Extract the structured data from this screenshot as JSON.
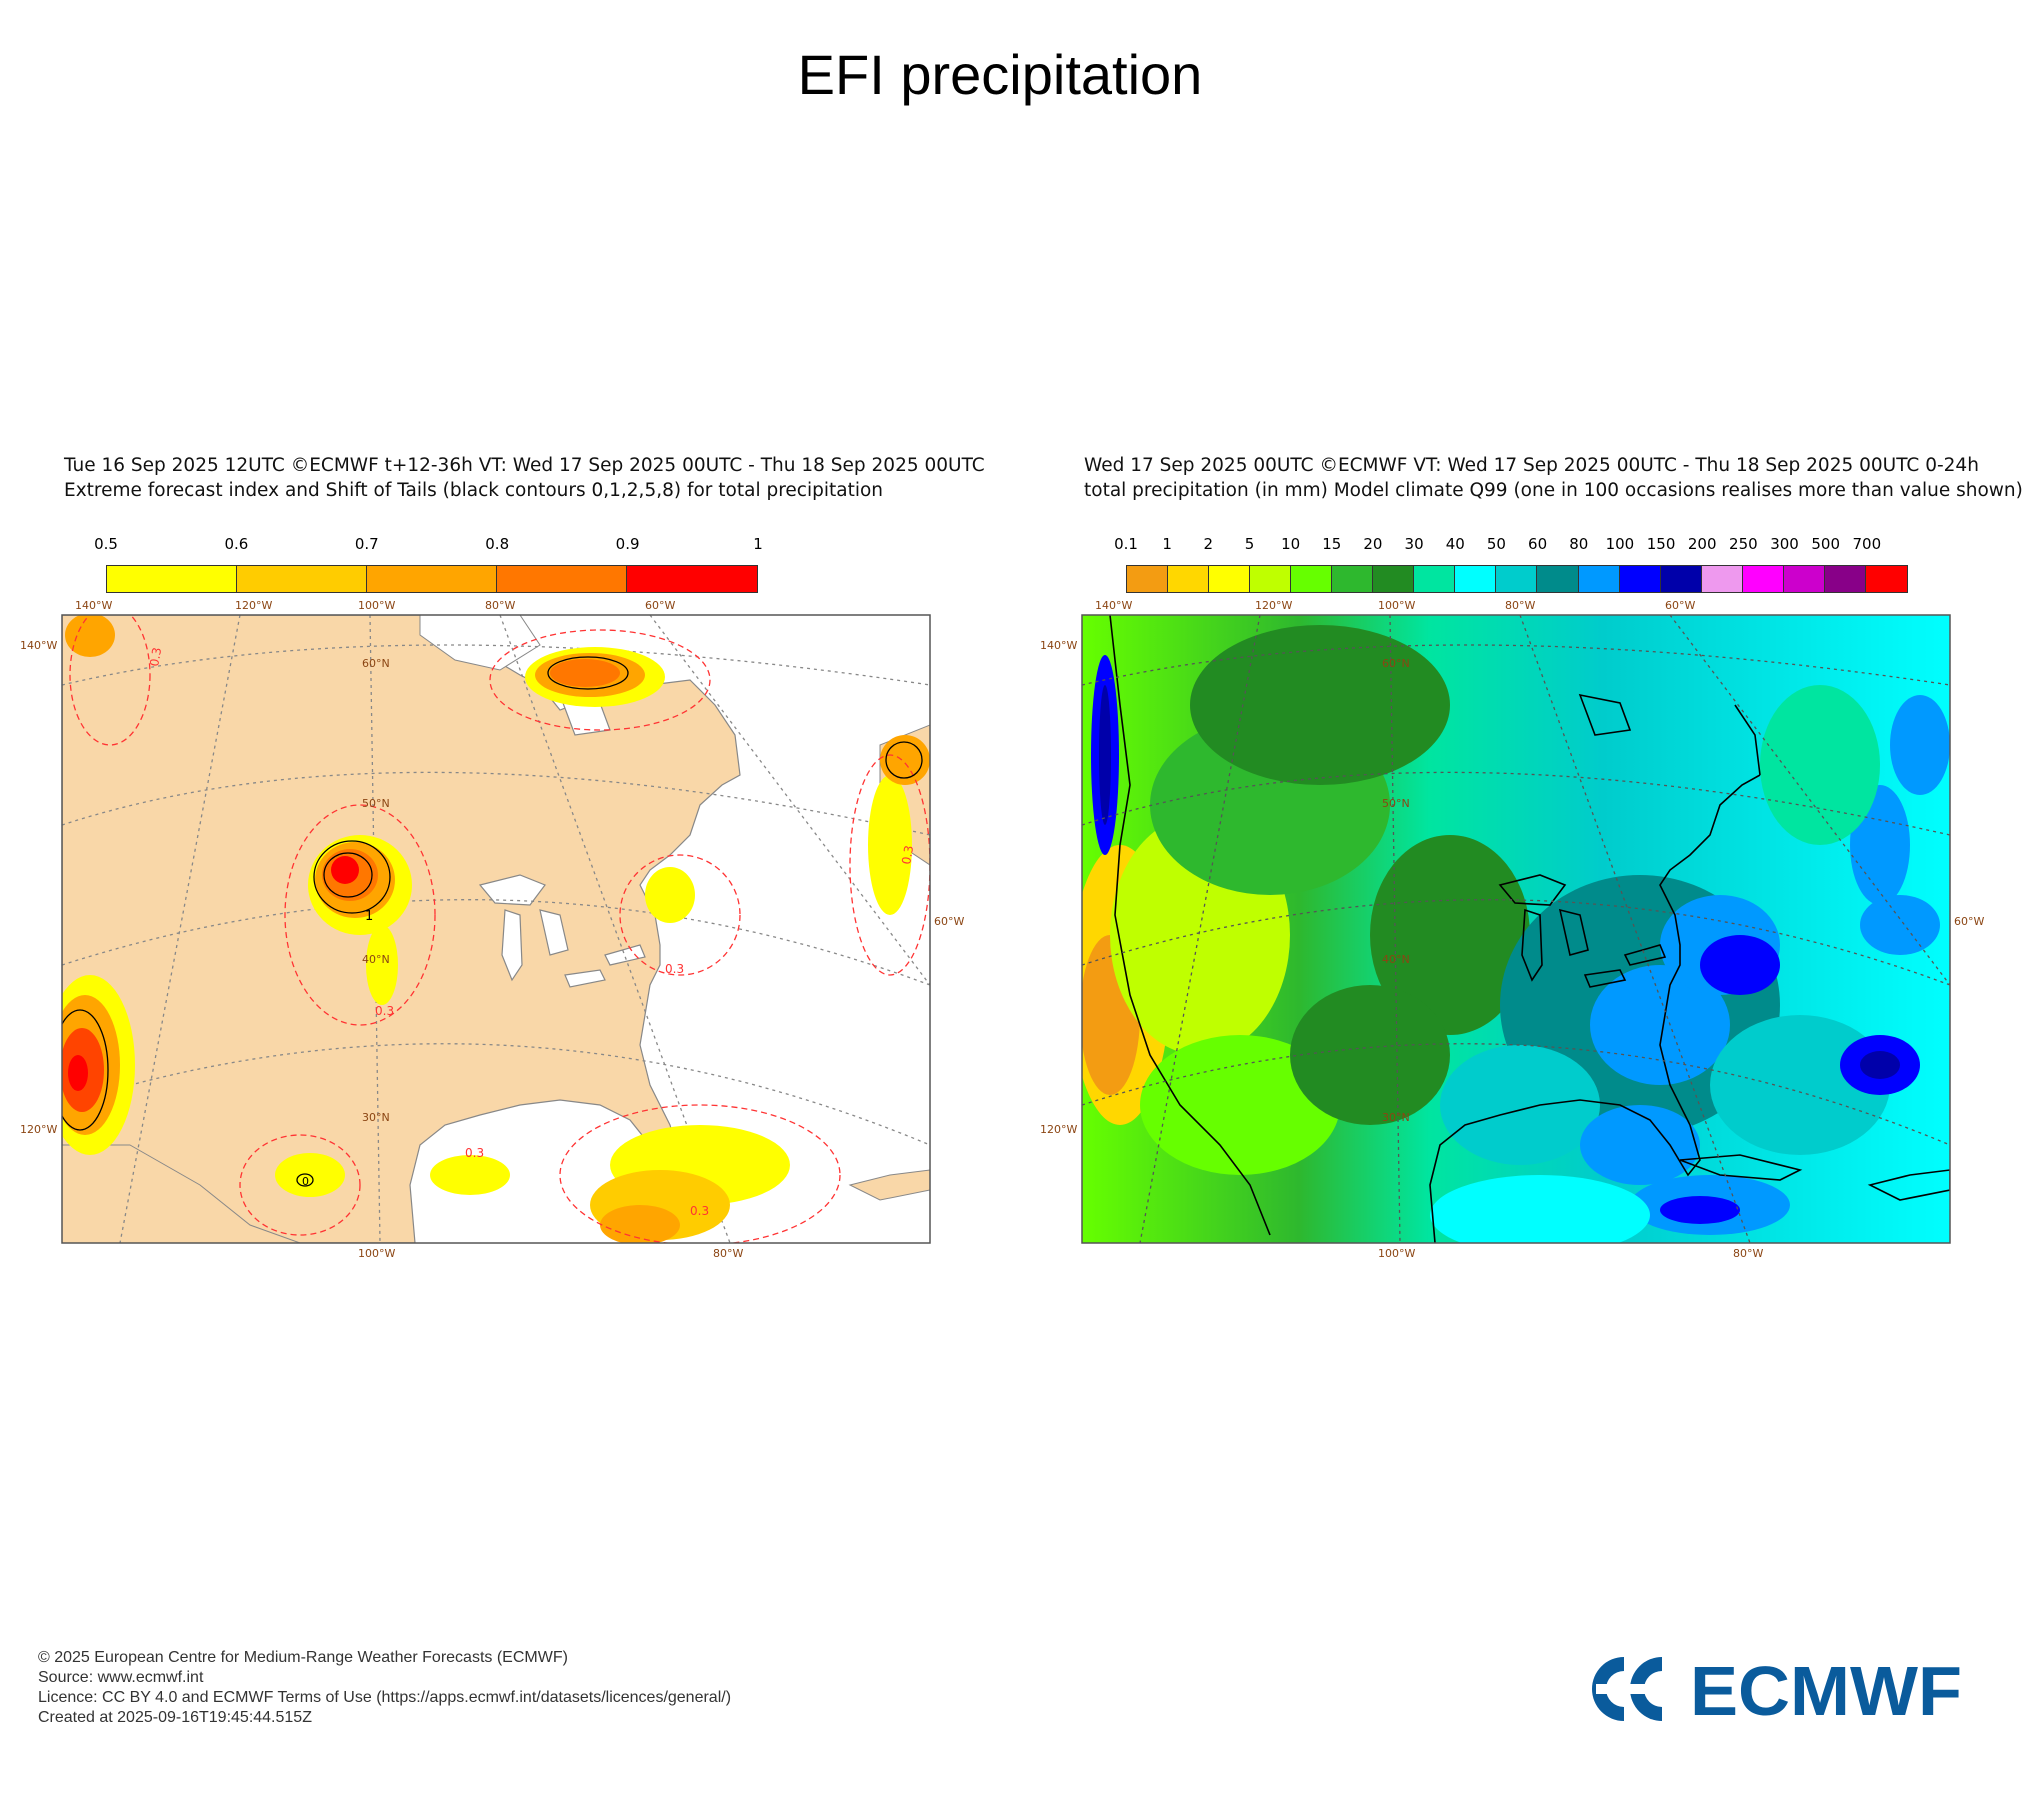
{
  "page": {
    "title": "EFI precipitation"
  },
  "left_panel": {
    "header_line1": "Tue 16 Sep 2025 12UTC ©ECMWF t+12-36h  VT: Wed 17 Sep 2025 00UTC - Thu 18 Sep 2025 00UTC",
    "header_line2": "Extreme forecast index and Shift of Tails (black contours 0,1,2,5,8) for total precipitation",
    "colorbar": {
      "labels": [
        "0.5",
        "0.6",
        "0.7",
        "0.8",
        "0.9",
        "1"
      ],
      "colors": [
        "#ffff00",
        "#ffcc00",
        "#ffa500",
        "#ff7700",
        "#ff0000"
      ]
    },
    "lon_top": [
      "140°W",
      "120°W",
      "100°W",
      "80°W",
      "60°W"
    ],
    "lon_bottom": [
      "100°W",
      "80°W"
    ],
    "lat_side_left": [
      "140°W",
      "120°W"
    ],
    "lat_side_right": [
      "60°W"
    ],
    "lat_inner": [
      "60°N",
      "50°N",
      "40°N",
      "30°N"
    ],
    "contour_label": "0.3",
    "sot_labels": [
      "1",
      "0"
    ]
  },
  "right_panel": {
    "header_line1": "Wed 17 Sep 2025 00UTC ©ECMWF VT: Wed 17 Sep 2025 00UTC - Thu 18 Sep 2025 00UTC   0-24h",
    "header_line2": "total precipitation (in mm)  Model climate Q99 (one in 100 occasions realises more than value shown)",
    "colorbar": {
      "labels": [
        "0.1",
        "1",
        "2",
        "5",
        "10",
        "15",
        "20",
        "30",
        "40",
        "50",
        "60",
        "80",
        "100",
        "150",
        "200",
        "250",
        "300",
        "500",
        "700"
      ],
      "colors": [
        "#f39c12",
        "#ffd700",
        "#ffff00",
        "#bfff00",
        "#66ff00",
        "#2eb82e",
        "#228b22",
        "#00e5a0",
        "#00ffff",
        "#00cccc",
        "#008b8b",
        "#0099ff",
        "#0000ff",
        "#0000aa",
        "#ee99ee",
        "#ff00ff",
        "#cc00cc",
        "#880088",
        "#ff0000"
      ]
    },
    "lon_top": [
      "140°W",
      "120°W",
      "100°W",
      "80°W",
      "60°W"
    ],
    "lon_bottom": [
      "100°W",
      "80°W"
    ],
    "lat_side_left": [
      "140°W",
      "120°W"
    ],
    "lat_side_right": [
      "60°W"
    ],
    "lat_inner": [
      "60°N",
      "50°N",
      "40°N",
      "30°N"
    ]
  },
  "footer": {
    "copyright": "© 2025 European Centre for Medium-Range Weather Forecasts (ECMWF)",
    "source": "Source: www.ecmwf.int",
    "licence": "Licence: CC BY 4.0 and ECMWF Terms of Use (https://apps.ecmwf.int/datasets/licences/general/)",
    "created": "Created at 2025-09-16T19:45:44.515Z"
  },
  "logo": {
    "text": "ECMWF",
    "color": "#0a5b9c"
  }
}
